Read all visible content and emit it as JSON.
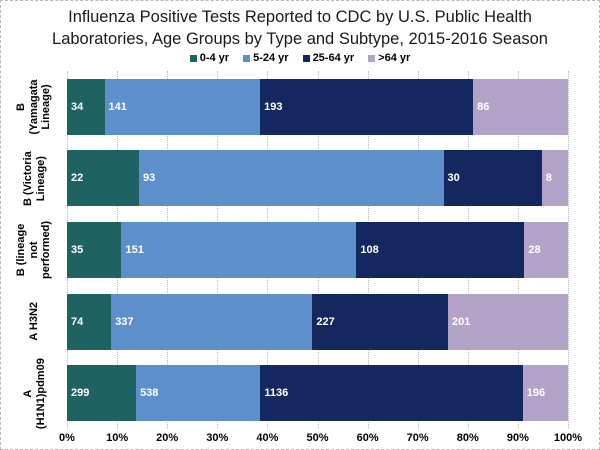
{
  "title": "Influenza Positive Tests Reported to CDC by U.S. Public Health Laboratories, Age Groups by Type and Subtype, 2015-2016 Season",
  "chart_data": {
    "type": "bar",
    "orientation": "horizontal",
    "stacked": true,
    "normalized": "percent",
    "title": "Influenza Positive Tests Reported to CDC by U.S. Public Health Laboratories, Age Groups by Type and Subtype, 2015-2016 Season",
    "categories": [
      "B (Yamagata Lineage)",
      "B (Victoria Lineage)",
      "B (lineage not performed)",
      "A H3N2",
      "A (H1N1)pdm09"
    ],
    "category_label_lines": [
      [
        "B (Yamagata",
        "Lineage)"
      ],
      [
        "B (Victoria",
        "Lineage)"
      ],
      [
        "B (lineage not",
        "performed)"
      ],
      [
        "A H3N2"
      ],
      [
        "A",
        "(H1N1)pdm09"
      ]
    ],
    "series": [
      {
        "name": "0-4 yr",
        "color": "#1E6362",
        "values": [
          34,
          22,
          35,
          74,
          299
        ]
      },
      {
        "name": "5-24 yr",
        "color": "#5C8FCC",
        "values": [
          141,
          93,
          151,
          337,
          538
        ]
      },
      {
        "name": "25-64 yr",
        "color": "#15275F",
        "values": [
          193,
          30,
          108,
          227,
          1136
        ]
      },
      {
        "name": ">64 yr",
        "color": "#B3A2C7",
        "values": [
          86,
          8,
          28,
          201,
          196
        ]
      }
    ],
    "xlabel": "",
    "ylabel": "",
    "xlim": [
      0,
      100
    ],
    "x_ticks": [
      "0%",
      "10%",
      "20%",
      "30%",
      "40%",
      "50%",
      "60%",
      "70%",
      "80%",
      "90%",
      "100%"
    ],
    "legend_position": "top",
    "grid": "vertical-dotted",
    "value_labels": "inside-left-white-bold"
  },
  "colors": {
    "gridline": "#b9b9b9",
    "value_label_text": "#ffffff",
    "axis_text": "#000000"
  }
}
